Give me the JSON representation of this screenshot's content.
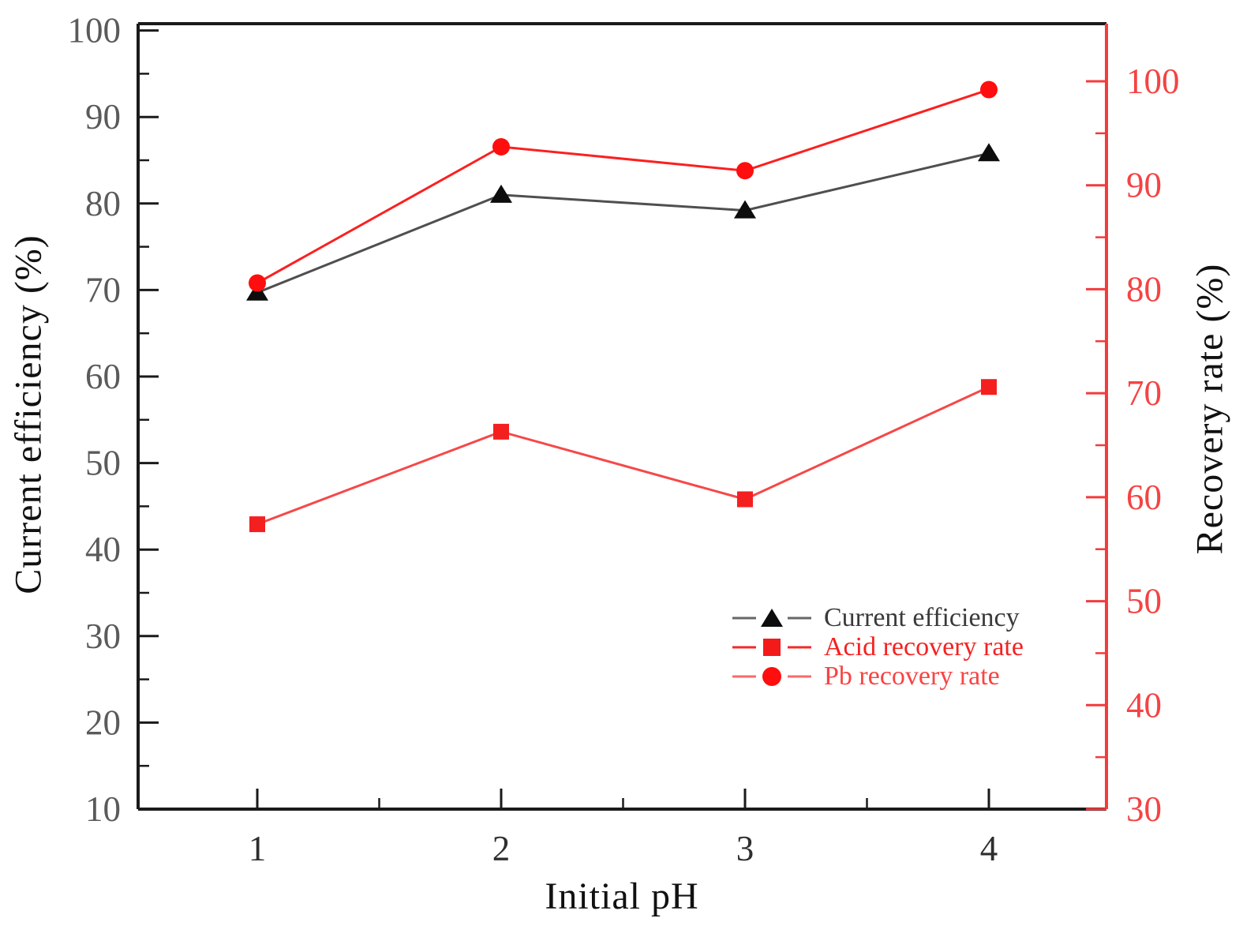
{
  "chart_data": {
    "type": "line",
    "x": [
      1,
      2,
      3,
      4
    ],
    "xlabel": "Initial pH",
    "x_ticks": [
      1,
      2,
      3,
      4
    ],
    "x_minor_ticks": [
      1.5,
      2.5,
      3.5
    ],
    "axes": {
      "left": {
        "label": "Current efficiency (%)",
        "min": 10,
        "max": 100,
        "ticks": [
          10,
          20,
          30,
          40,
          50,
          60,
          70,
          80,
          90,
          100
        ],
        "minor_ticks": [
          15,
          25,
          35,
          45,
          55,
          65,
          75,
          85,
          95
        ],
        "axis_color": "#1a1a1a",
        "tick_label_color": "#5a5a5a"
      },
      "right": {
        "label": "Recovery rate (%)",
        "min": 30,
        "max": 100,
        "ticks": [
          30,
          40,
          50,
          60,
          70,
          80,
          90,
          100
        ],
        "minor_ticks": [
          35,
          45,
          55,
          65,
          75,
          85,
          95
        ],
        "axis_color": "#f43b3b",
        "tick_label_color": "#f54343"
      },
      "x_tick_label_color": "#2e2e2e"
    },
    "series": [
      {
        "name": "Current efficiency",
        "axis": "left",
        "marker": "triangle",
        "line_color": "#4f4f4f",
        "marker_color": "#0d0d0d",
        "label_color": "#3a3a3a",
        "values": [
          69.7,
          81.0,
          79.2,
          85.8
        ]
      },
      {
        "name": "Acid recovery rate",
        "axis": "right",
        "marker": "square",
        "line_color": "#f64848",
        "marker_color": "#f42020",
        "label_color": "#f42222",
        "values": [
          57.4,
          66.3,
          59.8,
          70.6
        ]
      },
      {
        "name": "Pb recovery rate",
        "axis": "right",
        "marker": "circle",
        "line_color": "#fb2020",
        "marker_color": "#fe0e0e",
        "label_color": "#f84444",
        "values": [
          80.6,
          93.7,
          91.4,
          99.2
        ]
      }
    ],
    "legend": {
      "position": "inside-lower-right",
      "entries": [
        "Current efficiency",
        "Acid recovery rate",
        "Pb recovery rate"
      ]
    }
  }
}
